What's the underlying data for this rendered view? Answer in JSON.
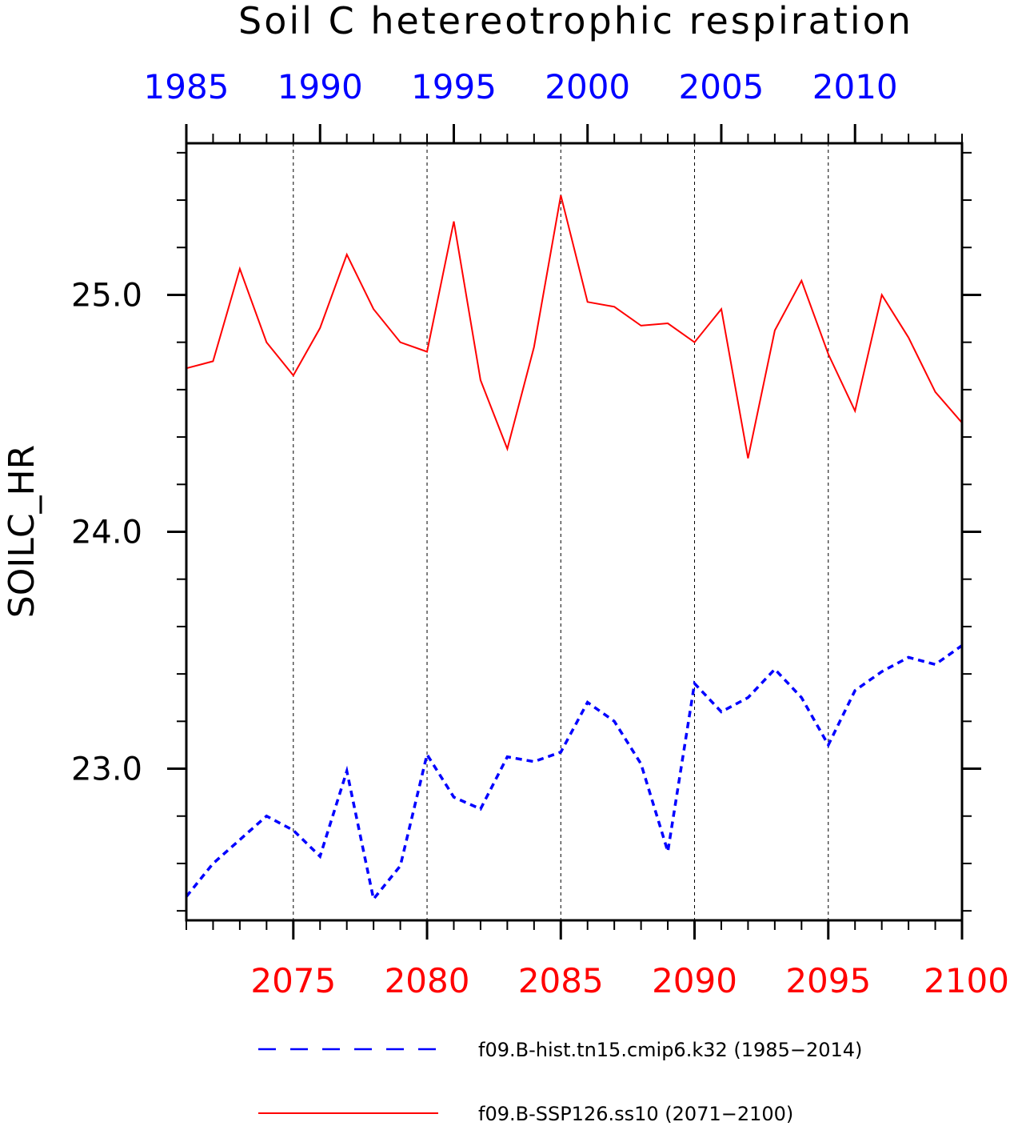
{
  "chart_data": {
    "type": "line",
    "title": "Soil C hetereotrophic respiration",
    "ylabel": "SOILC_HR",
    "ylim": [
      22.36,
      25.64
    ],
    "y_ticks": [
      23.0,
      24.0,
      25.0
    ],
    "y_tick_labels": [
      "23.0",
      "24.0",
      "25.0"
    ],
    "y_minor_step": 0.2,
    "grid": "vertical dashed lines at bottom-axis major ticks",
    "bottom_axis": {
      "range": [
        2071,
        2100
      ],
      "ticks": [
        2075,
        2080,
        2085,
        2090,
        2095,
        2100
      ],
      "tick_labels": [
        "2075",
        "2080",
        "2085",
        "2090",
        "2095",
        "2100"
      ],
      "color": "#ff0000"
    },
    "top_axis": {
      "range": [
        1985,
        2014
      ],
      "ticks": [
        1985,
        1990,
        1995,
        2000,
        2005,
        2010
      ],
      "tick_labels": [
        "1985",
        "1990",
        "1995",
        "2000",
        "2005",
        "2010"
      ],
      "color": "#0000ff"
    },
    "legend_position": "bottom",
    "series": [
      {
        "name": "f09.B-hist.tn15.cmip6.k32 (1985−2014)",
        "axis": "top",
        "color": "#0000ff",
        "style": "dashed",
        "x": [
          1985,
          1986,
          1987,
          1988,
          1989,
          1990,
          1991,
          1992,
          1993,
          1994,
          1995,
          1996,
          1997,
          1998,
          1999,
          2000,
          2001,
          2002,
          2003,
          2004,
          2005,
          2006,
          2007,
          2008,
          2009,
          2010,
          2011,
          2012,
          2013,
          2014
        ],
        "values": [
          22.46,
          22.6,
          22.7,
          22.8,
          22.74,
          22.63,
          22.99,
          22.45,
          22.59,
          23.06,
          22.88,
          22.83,
          23.05,
          23.03,
          23.07,
          23.28,
          23.2,
          23.02,
          22.65,
          23.36,
          23.24,
          23.3,
          23.42,
          23.3,
          23.1,
          23.33,
          23.41,
          23.47,
          23.44,
          23.52
        ]
      },
      {
        "name": "f09.B-SSP126.ss10 (2071−2100)",
        "axis": "bottom",
        "color": "#ff0000",
        "style": "solid",
        "x": [
          2071,
          2072,
          2073,
          2074,
          2075,
          2076,
          2077,
          2078,
          2079,
          2080,
          2081,
          2082,
          2083,
          2084,
          2085,
          2086,
          2087,
          2088,
          2089,
          2090,
          2091,
          2092,
          2093,
          2094,
          2095,
          2096,
          2097,
          2098,
          2099,
          2100
        ],
        "values": [
          24.69,
          24.72,
          25.11,
          24.8,
          24.66,
          24.86,
          25.17,
          24.94,
          24.8,
          24.76,
          25.31,
          24.64,
          24.35,
          24.78,
          25.42,
          24.97,
          24.95,
          24.87,
          24.88,
          24.8,
          24.94,
          24.31,
          24.85,
          25.06,
          24.75,
          24.51,
          25.0,
          24.82,
          24.59,
          24.46
        ]
      }
    ]
  }
}
